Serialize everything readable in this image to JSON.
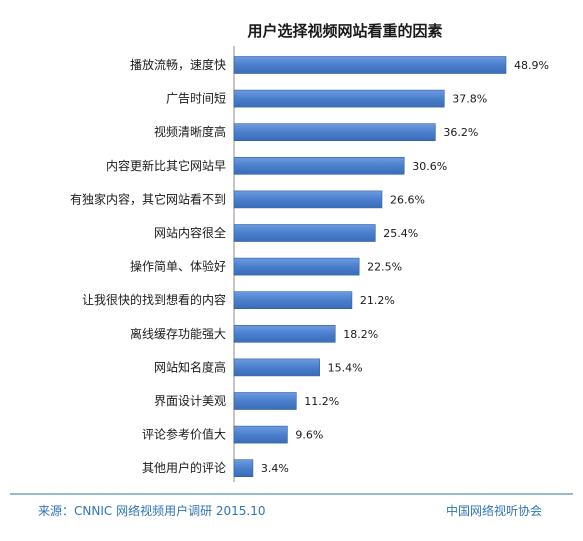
{
  "chart_data": {
    "type": "bar",
    "orientation": "horizontal",
    "title": "用户选择视频网站看重的因素",
    "categories": [
      "播放流畅，速度快",
      "广告时间短",
      "视频清晰度高",
      "内容更新比其它网站早",
      "有独家内容，其它网站看不到",
      "网站内容很全",
      "操作简单、体验好",
      "让我很快的找到想看的内容",
      "离线缓存功能强大",
      "网站知名度高",
      "界面设计美观",
      "评论参考价值大",
      "其他用户的评论"
    ],
    "values": [
      48.9,
      37.8,
      36.2,
      30.6,
      26.6,
      25.4,
      22.5,
      21.2,
      18.2,
      15.4,
      11.2,
      9.6,
      3.4
    ],
    "value_labels": [
      "48.9%",
      "37.8%",
      "36.2%",
      "30.6%",
      "26.6%",
      "25.4%",
      "22.5%",
      "21.2%",
      "18.2%",
      "15.4%",
      "11.2%",
      "9.6%",
      "3.4%"
    ],
    "xlim": [
      0,
      50
    ],
    "grid": false,
    "bar_color": "#4a7fcc",
    "bar_edge_color": "#2f5f9e"
  },
  "footer": {
    "source": "来源：CNNIC 网络视频用户调研   2015.10",
    "org": "中国网络视听协会",
    "line_color": "#2e75b6"
  }
}
